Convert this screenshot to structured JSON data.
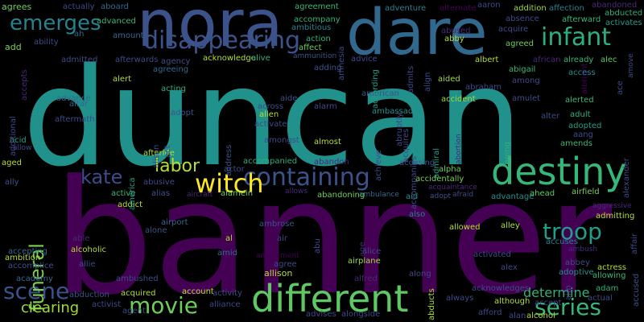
{
  "words": [
    {
      "text": "duncan",
      "color": "#21918c"
    },
    {
      "text": "banner",
      "color": "#440154"
    },
    {
      "text": "nora",
      "color": "#3b528b"
    },
    {
      "text": "dare",
      "color": "#31688e"
    },
    {
      "text": "different",
      "color": "#5ec962"
    },
    {
      "text": "destiny",
      "color": "#35b779"
    },
    {
      "text": "containing",
      "color": "#3b528b"
    },
    {
      "text": "disappearing",
      "color": "#3b528b"
    },
    {
      "text": "witch",
      "color": "#fde725"
    },
    {
      "text": "movie",
      "color": "#6ece58"
    },
    {
      "text": "series",
      "color": "#35b779"
    },
    {
      "text": "infant",
      "color": "#2ab07f"
    },
    {
      "text": "emerges",
      "color": "#26828e"
    },
    {
      "text": "labor",
      "color": "#b5de2b"
    },
    {
      "text": "kate",
      "color": "#3e4a89"
    },
    {
      "text": "troop",
      "color": "#1f9e89"
    },
    {
      "text": "scene",
      "color": "#3b528b"
    },
    {
      "text": "funeral",
      "color": "#7ad151"
    },
    {
      "text": "clearing",
      "color": "#a0da39"
    },
    {
      "text": "determine",
      "color": "#2db27d"
    },
    {
      "text": "agrees",
      "color": "#6ece58"
    },
    {
      "text": "actually",
      "color": "#3e4a89"
    },
    {
      "text": "aboard",
      "color": "#31688e"
    },
    {
      "text": "agreement",
      "color": "#35b779"
    },
    {
      "text": "adventure",
      "color": "#26828e"
    },
    {
      "text": "alternate",
      "color": "#440154"
    },
    {
      "text": "aaron",
      "color": "#3e4a89"
    },
    {
      "text": "addition",
      "color": "#a0da39"
    },
    {
      "text": "affection",
      "color": "#26828e"
    },
    {
      "text": "abandoned",
      "color": "#482878"
    },
    {
      "text": "advanced",
      "color": "#35b779"
    },
    {
      "text": "accompany",
      "color": "#2db27d"
    },
    {
      "text": "absence",
      "color": "#3e4a89"
    },
    {
      "text": "afterward",
      "color": "#35b779"
    },
    {
      "text": "abducted",
      "color": "#2ab07f"
    },
    {
      "text": "activates",
      "color": "#1f9e89"
    },
    {
      "text": "ambitious",
      "color": "#26828e"
    },
    {
      "text": "abused",
      "color": "#482878"
    },
    {
      "text": "acquire",
      "color": "#3e4a89"
    },
    {
      "text": "amount",
      "color": "#31688e"
    },
    {
      "text": "ability",
      "color": "#3e4a89"
    },
    {
      "text": "add",
      "color": "#7ad151"
    },
    {
      "text": "action",
      "color": "#2db27d"
    },
    {
      "text": "affect",
      "color": "#6ece58"
    },
    {
      "text": "abby",
      "color": "#b5de2b"
    },
    {
      "text": "agreed",
      "color": "#6ece58"
    },
    {
      "text": "albright",
      "color": "#440154"
    },
    {
      "text": "ah",
      "color": "#31688e"
    },
    {
      "text": "ammunition",
      "color": "#3b528b"
    },
    {
      "text": "admitted",
      "color": "#3e4a89"
    },
    {
      "text": "afterwards",
      "color": "#3e4a89"
    },
    {
      "text": "agency",
      "color": "#3b528b"
    },
    {
      "text": "acknowledge",
      "color": "#b5de2b"
    },
    {
      "text": "alive",
      "color": "#2ab07f"
    },
    {
      "text": "advice",
      "color": "#3e4a89"
    },
    {
      "text": "albert",
      "color": "#b5de2b"
    },
    {
      "text": "african",
      "color": "#482878"
    },
    {
      "text": "already",
      "color": "#35b779"
    },
    {
      "text": "alec",
      "color": "#5ec962"
    },
    {
      "text": "abigail",
      "color": "#35b779"
    },
    {
      "text": "adding",
      "color": "#3b528b"
    },
    {
      "text": "agreeing",
      "color": "#31688e"
    },
    {
      "text": "alert",
      "color": "#b5de2b"
    },
    {
      "text": "aided",
      "color": "#a0da39"
    },
    {
      "text": "abraham",
      "color": "#3e4a89"
    },
    {
      "text": "among",
      "color": "#3e4a89"
    },
    {
      "text": "access",
      "color": "#21918c"
    },
    {
      "text": "advance",
      "color": "#31688e"
    },
    {
      "text": "altar",
      "color": "#31688e"
    },
    {
      "text": "acting",
      "color": "#2ab07f"
    },
    {
      "text": "american",
      "color": "#3b528b"
    },
    {
      "text": "ambassador",
      "color": "#21918c"
    },
    {
      "text": "amulet",
      "color": "#3e4a89"
    },
    {
      "text": "alerted",
      "color": "#35b779"
    },
    {
      "text": "adopt",
      "color": "#3b528b"
    },
    {
      "text": "aide",
      "color": "#3b528b"
    },
    {
      "text": "alarm",
      "color": "#3e4a89"
    },
    {
      "text": "accident",
      "color": "#a0da39"
    },
    {
      "text": "adult",
      "color": "#2db27d"
    },
    {
      "text": "aftermath",
      "color": "#3e4a89"
    },
    {
      "text": "across",
      "color": "#3e4a89"
    },
    {
      "text": "allen",
      "color": "#b5de2b"
    },
    {
      "text": "activate",
      "color": "#3e4a89"
    },
    {
      "text": "alter",
      "color": "#3e4a89"
    },
    {
      "text": "adopted",
      "color": "#1f9e89"
    },
    {
      "text": "aang",
      "color": "#3e4a89"
    },
    {
      "text": "amends",
      "color": "#35b779"
    },
    {
      "text": "acid",
      "color": "#1f9e89"
    },
    {
      "text": "allow",
      "color": "#3e4a89"
    },
    {
      "text": "amongst",
      "color": "#3e4a89"
    },
    {
      "text": "almost",
      "color": "#b5de2b"
    },
    {
      "text": "afterlife",
      "color": "#b5de2b"
    },
    {
      "text": "accompanied",
      "color": "#2ab07f"
    },
    {
      "text": "abandon",
      "color": "#482878"
    },
    {
      "text": "actor",
      "color": "#3e4a89"
    },
    {
      "text": "accusing",
      "color": "#3b528b"
    },
    {
      "text": "alpha",
      "color": "#6ece58"
    },
    {
      "text": "accidentally",
      "color": "#7ad151"
    },
    {
      "text": "acquaintance",
      "color": "#482878"
    },
    {
      "text": "aged",
      "color": "#b5de2b"
    },
    {
      "text": "ally",
      "color": "#3b528b"
    },
    {
      "text": "abusive",
      "color": "#3e4a89"
    },
    {
      "text": "alias",
      "color": "#3b528b"
    },
    {
      "text": "alamein",
      "color": "#6ece58"
    },
    {
      "text": "allows",
      "color": "#482878"
    },
    {
      "text": "abandoning",
      "color": "#6ece58"
    },
    {
      "text": "ambulance",
      "color": "#31688e"
    },
    {
      "text": "aid",
      "color": "#21918c"
    },
    {
      "text": "adopt",
      "color": "#3b528b"
    },
    {
      "text": "afraid",
      "color": "#3e4a89"
    },
    {
      "text": "advantage",
      "color": "#21918c"
    },
    {
      "text": "ahead",
      "color": "#5ec962"
    },
    {
      "text": "airfield",
      "color": "#7ad151"
    },
    {
      "text": "active",
      "color": "#35b779"
    },
    {
      "text": "aircraft",
      "color": "#482878"
    },
    {
      "text": "addict",
      "color": "#b5de2b"
    },
    {
      "text": "alien",
      "color": "#440154"
    },
    {
      "text": "also",
      "color": "#26828e"
    },
    {
      "text": "alley",
      "color": "#b5de2b"
    },
    {
      "text": "admitting",
      "color": "#b5de2b"
    },
    {
      "text": "aggressive",
      "color": "#482878"
    },
    {
      "text": "able",
      "color": "#482878"
    },
    {
      "text": "alone",
      "color": "#3b528b"
    },
    {
      "text": "airport",
      "color": "#31688e"
    },
    {
      "text": "ambrose",
      "color": "#3b528b"
    },
    {
      "text": "allowed",
      "color": "#b5de2b"
    },
    {
      "text": "al",
      "color": "#b5de2b"
    },
    {
      "text": "air",
      "color": "#3e4a89"
    },
    {
      "text": "accuses",
      "color": "#26828e"
    },
    {
      "text": "ambush",
      "color": "#482878"
    },
    {
      "text": "abbey",
      "color": "#3e4a89"
    },
    {
      "text": "actress",
      "color": "#b5de2b"
    },
    {
      "text": "accepting",
      "color": "#31688e"
    },
    {
      "text": "alcoholic",
      "color": "#b5de2b"
    },
    {
      "text": "amid",
      "color": "#31688e"
    },
    {
      "text": "amusement",
      "color": "#440154"
    },
    {
      "text": "agree",
      "color": "#3e4a89"
    },
    {
      "text": "allison",
      "color": "#b5de2b"
    },
    {
      "text": "alice",
      "color": "#3e4a89"
    },
    {
      "text": "airplane",
      "color": "#a0da39"
    },
    {
      "text": "activated",
      "color": "#3e4a89"
    },
    {
      "text": "alex",
      "color": "#3e4a89"
    },
    {
      "text": "adoptive",
      "color": "#21918c"
    },
    {
      "text": "allowing",
      "color": "#35b779"
    },
    {
      "text": "accomplice",
      "color": "#3b528b"
    },
    {
      "text": "allie",
      "color": "#3e4a89"
    },
    {
      "text": "academy",
      "color": "#31688e"
    },
    {
      "text": "ambushed",
      "color": "#3e4a89"
    },
    {
      "text": "alfred",
      "color": "#482878"
    },
    {
      "text": "along",
      "color": "#3e4a89"
    },
    {
      "text": "acknowledges",
      "color": "#3e4a89"
    },
    {
      "text": "adam",
      "color": "#2db27d"
    },
    {
      "text": "abduction",
      "color": "#3b528b"
    },
    {
      "text": "acquired",
      "color": "#b5de2b"
    },
    {
      "text": "account",
      "color": "#b5de2b"
    },
    {
      "text": "activity",
      "color": "#3e4a89"
    },
    {
      "text": "although",
      "color": "#b5de2b"
    },
    {
      "text": "accept",
      "color": "#3e4a89"
    },
    {
      "text": "actual",
      "color": "#3e4a89"
    },
    {
      "text": "activist",
      "color": "#3e4a89"
    },
    {
      "text": "alliance",
      "color": "#3e4a89"
    },
    {
      "text": "always",
      "color": "#3e4a89"
    },
    {
      "text": "advises",
      "color": "#3e4a89"
    },
    {
      "text": "alongside",
      "color": "#3e4a89"
    },
    {
      "text": "afford",
      "color": "#3e4a89"
    },
    {
      "text": "alan",
      "color": "#3e4a89"
    },
    {
      "text": "alcohol",
      "color": "#b5de2b"
    },
    {
      "text": "agent",
      "color": "#3e4a89"
    },
    {
      "text": "ambition",
      "color": "#b5de2b"
    },
    {
      "text": "additional",
      "color": "#3e4a89"
    },
    {
      "text": "accepts",
      "color": "#482878"
    },
    {
      "text": "according",
      "color": "#1f9e89"
    },
    {
      "text": "amnesia",
      "color": "#3e4a89"
    },
    {
      "text": "admits",
      "color": "#3e4a89"
    },
    {
      "text": "align",
      "color": "#3e4a89"
    },
    {
      "text": "abruptly",
      "color": "#3e4a89"
    },
    {
      "text": "acquires",
      "color": "#3e4a89"
    },
    {
      "text": "achieve",
      "color": "#3e4a89"
    },
    {
      "text": "accompanies",
      "color": "#3e4a89"
    },
    {
      "text": "admiral",
      "color": "#1f9e89"
    },
    {
      "text": "abortion",
      "color": "#482878"
    },
    {
      "text": "aging",
      "color": "#2db27d"
    },
    {
      "text": "alexander",
      "color": "#3e4a89"
    },
    {
      "text": "america",
      "color": "#1f9e89"
    },
    {
      "text": "alison",
      "color": "#3e4a89"
    },
    {
      "text": "act",
      "color": "#3e4a89"
    },
    {
      "text": "address",
      "color": "#3b528b"
    },
    {
      "text": "abu",
      "color": "#3e4a89"
    },
    {
      "text": "age",
      "color": "#482878"
    },
    {
      "text": "abducts",
      "color": "#b5de2b"
    },
    {
      "text": "affair",
      "color": "#3e4a89"
    },
    {
      "text": "accused",
      "color": "#3b528b"
    },
    {
      "text": "aim",
      "color": "#3e4a89"
    },
    {
      "text": "ace",
      "color": "#3e4a89"
    },
    {
      "text": "amove",
      "color": "#3e4a89"
    }
  ]
}
